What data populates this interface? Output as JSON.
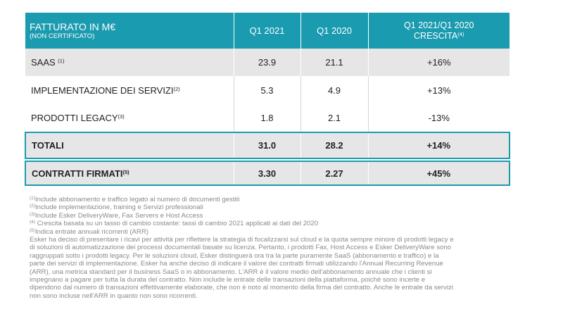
{
  "table": {
    "header": {
      "title": "FATTURATO IN M€",
      "subtitle": "(NON CERTIFICATO)",
      "col_q1_2021": "Q1 2021",
      "col_q1_2020": "Q1 2020",
      "col_growth_line1": "Q1 2021/Q1 2020",
      "col_growth_line2": "CRESCITA",
      "col_growth_note": "(4)"
    },
    "rows": [
      {
        "label": "SAAS ",
        "note": "(1)",
        "q1_2021": "23.9",
        "q1_2020": "21.1",
        "growth": "+16%"
      },
      {
        "label": "IMPLEMENTAZIONE DEI SERVIZI",
        "note": "(2)",
        "q1_2021": "5.3",
        "q1_2020": "4.9",
        "growth": "+13%"
      },
      {
        "label": "PRODOTTI LEGACY",
        "note": "(3)",
        "q1_2021": "1.8",
        "q1_2020": "2.1",
        "growth": "-13%"
      }
    ],
    "total": {
      "label": "TOTALI",
      "q1_2021": "31.0",
      "q1_2020": "28.2",
      "growth": "+14%"
    },
    "contracts": {
      "label": "CONTRATTI FIRMATI",
      "note": "(5)",
      "q1_2021": "3.30",
      "q1_2020": "2.27",
      "growth": "+45%"
    }
  },
  "footnotes": [
    {
      "mark": "(1)",
      "text": "Include abbonamento e traffico legato al numero di documenti gestiti"
    },
    {
      "mark": "(2)",
      "text": "Include implementazione, training e Servizi professionali"
    },
    {
      "mark": "(3)",
      "text": "Include Esker DeliveryWare, Fax Servers e Host Access"
    },
    {
      "mark": "(4)",
      "text": " Crescita basata su un tasso di cambio costante: tassi di cambio 2021 applicati ai dati del 2020"
    },
    {
      "mark": "(5)",
      "text": "Indica entrate annuali ricorrenti (ARR)"
    }
  ],
  "paragraph_lines": [
    "Esker ha deciso di presentare i ricavi per attività per riflettere la strategia di focalizzarsi sul cloud e la quota sempre minore di prodotti legacy e",
    "di soluzioni di automatizzazione dei processi documentali basate su licenza. Pertanto, i prodotti Fax, Host Access e Esker DeliveryWare sono",
    "raggruppati sotto i prodotti legacy. Per le soluzioni cloud, Esker distinguerà ora tra la parte puramente SaaS (abbonamento e traffico) e la",
    "parte dei servizi di implementazione. Esker ha anche deciso di indicare il valore dei contratti firmati utilizzando l'Annual Recurring Revenue",
    "(ARR), una metrica standard per il business SaaS o in abbonamento. L'ARR è il valore medio dell'abbonamento annuale che i clienti si",
    "impegnano a pagare per tutta la durata del contratto. Non include le entrate delle transazioni della piattaforma, poiché sono incerte e",
    "dipendono dal numero di transazioni effettivamente elaborate, che non è noto al momento della firma del contratto. Anche le entrate da servizi",
    "non sono incluse nell'ARR in quanto non sono ricorrenti."
  ]
}
